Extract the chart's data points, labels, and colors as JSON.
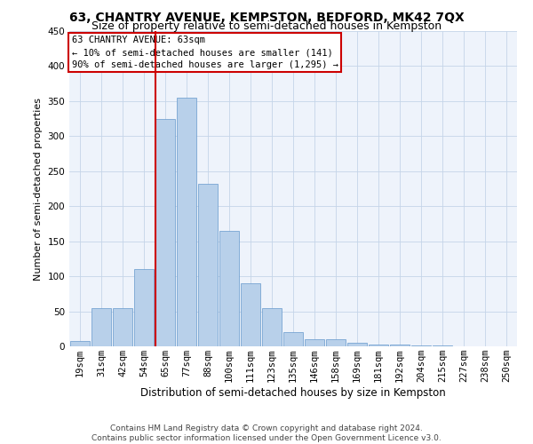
{
  "title": "63, CHANTRY AVENUE, KEMPSTON, BEDFORD, MK42 7QX",
  "subtitle": "Size of property relative to semi-detached houses in Kempston",
  "xlabel": "Distribution of semi-detached houses by size in Kempston",
  "ylabel": "Number of semi-detached properties",
  "annotation_line1": "63 CHANTRY AVENUE: 63sqm",
  "annotation_line2": "← 10% of semi-detached houses are smaller (141)",
  "annotation_line3": "90% of semi-detached houses are larger (1,295) →",
  "footer_line1": "Contains HM Land Registry data © Crown copyright and database right 2024.",
  "footer_line2": "Contains public sector information licensed under the Open Government Licence v3.0.",
  "bar_labels": [
    "19sqm",
    "31sqm",
    "42sqm",
    "54sqm",
    "65sqm",
    "77sqm",
    "88sqm",
    "100sqm",
    "111sqm",
    "123sqm",
    "135sqm",
    "146sqm",
    "158sqm",
    "169sqm",
    "181sqm",
    "192sqm",
    "204sqm",
    "215sqm",
    "227sqm",
    "238sqm",
    "250sqm"
  ],
  "bar_values": [
    8,
    55,
    55,
    110,
    325,
    355,
    232,
    165,
    90,
    55,
    20,
    10,
    10,
    5,
    3,
    2,
    1,
    1,
    0,
    0,
    0
  ],
  "bar_color": "#b8d0ea",
  "bar_edge_color": "#6699cc",
  "vline_color": "#cc0000",
  "vline_index": 4,
  "annotation_box_color": "#cc0000",
  "background_color": "#eef3fb",
  "grid_color": "#c5d5e8",
  "ylim": [
    0,
    450
  ],
  "yticks": [
    0,
    50,
    100,
    150,
    200,
    250,
    300,
    350,
    400,
    450
  ],
  "title_fontsize": 10,
  "subtitle_fontsize": 9,
  "xlabel_fontsize": 8.5,
  "ylabel_fontsize": 8,
  "tick_fontsize": 7.5,
  "annotation_fontsize": 7.5,
  "footer_fontsize": 6.5
}
